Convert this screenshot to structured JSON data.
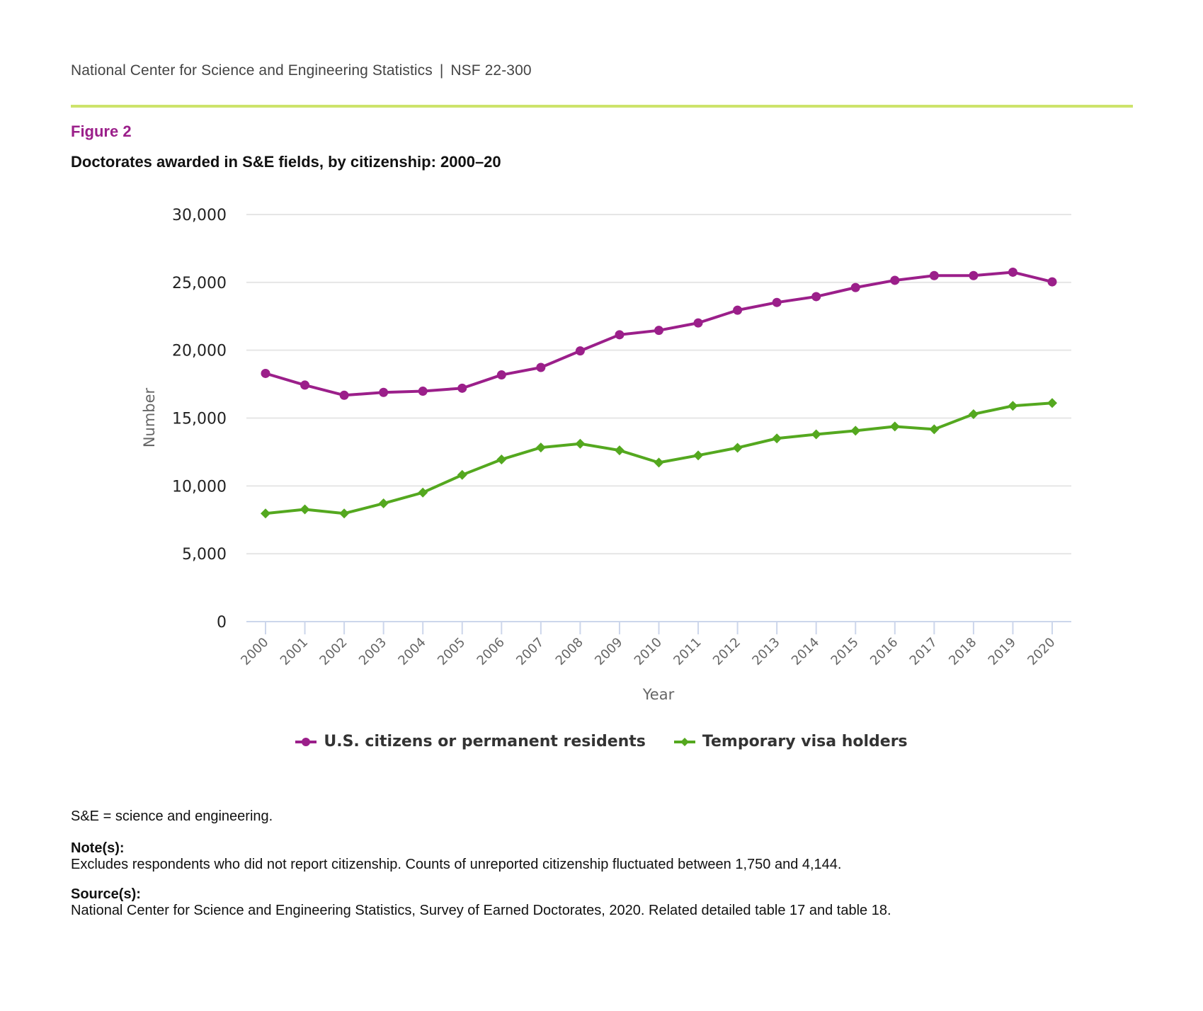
{
  "header": {
    "org": "National Center for Science and Engineering Statistics",
    "separator": "|",
    "report_id": "NSF 22-300"
  },
  "colors": {
    "rule": "#cde36b",
    "figure_label": "#9b1f8a",
    "series_us": "#9b1f8a",
    "series_visa": "#54a81f",
    "grid": "#e6e6e6",
    "axis": "#ccd6eb"
  },
  "figure": {
    "label": "Figure 2",
    "title": "Doctorates awarded in S&E fields, by citizenship: 2000–20"
  },
  "chart_data": {
    "type": "line",
    "title": "Doctorates awarded in S&E fields, by citizenship: 2000–20",
    "xlabel": "Year",
    "ylabel": "Number",
    "ylim": [
      0,
      30000
    ],
    "yticks": [
      0,
      5000,
      10000,
      15000,
      20000,
      25000,
      30000
    ],
    "ytick_labels": [
      "0",
      "5,000",
      "10,000",
      "15,000",
      "20,000",
      "25,000",
      "30,000"
    ],
    "grid": true,
    "legend_position": "bottom-center",
    "x": [
      "2000",
      "2001",
      "2002",
      "2003",
      "2004",
      "2005",
      "2006",
      "2007",
      "2008",
      "2009",
      "2010",
      "2011",
      "2012",
      "2013",
      "2014",
      "2015",
      "2016",
      "2017",
      "2018",
      "2019",
      "2020"
    ],
    "series": [
      {
        "name": "U.S. citizens or permanent residents",
        "marker": "circle",
        "color": "#9b1f8a",
        "values": [
          18290,
          17430,
          16680,
          16890,
          16980,
          17200,
          18180,
          18730,
          19950,
          21140,
          21460,
          22010,
          22950,
          23520,
          23950,
          24620,
          25150,
          25500,
          25500,
          25750,
          25040
        ]
      },
      {
        "name": "Temporary visa holders",
        "marker": "diamond",
        "color": "#54a81f",
        "values": [
          7970,
          8270,
          7970,
          8710,
          9510,
          10810,
          11950,
          12830,
          13110,
          12620,
          11720,
          12250,
          12810,
          13500,
          13800,
          14070,
          14380,
          14170,
          15290,
          15900,
          16110
        ]
      }
    ]
  },
  "footnotes": {
    "abbreviation": "S&E = science and engineering.",
    "notes_heading": "Note(s):",
    "notes_text": "Excludes respondents who did not report citizenship. Counts of unreported citizenship fluctuated between 1,750 and 4,144.",
    "sources_heading": "Source(s):",
    "sources_text": "National Center for Science and Engineering Statistics, Survey of Earned Doctorates, 2020. Related detailed table 17 and table 18."
  }
}
